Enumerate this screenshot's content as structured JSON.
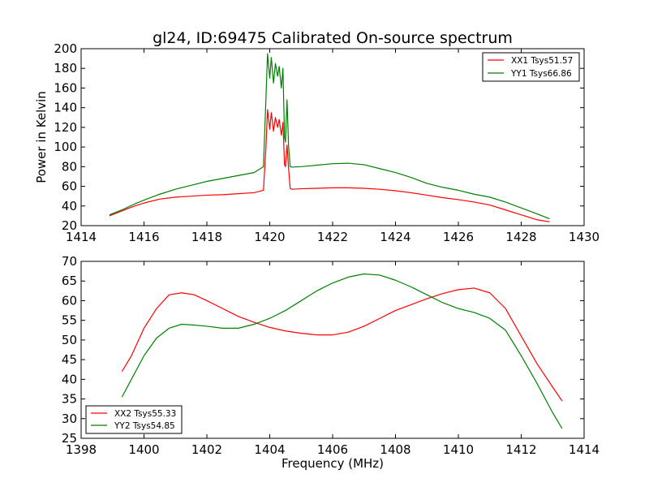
{
  "chart_data": [
    {
      "type": "line",
      "title": "gl24, ID:69475 Calibrated On-source spectrum",
      "xlabel": "",
      "ylabel": "Power in Kelvin",
      "xlim": [
        1414,
        1430
      ],
      "ylim": [
        20,
        200
      ],
      "xticks": [
        "1414",
        "1416",
        "1418",
        "1420",
        "1422",
        "1424",
        "1426",
        "1428",
        "1430"
      ],
      "yticks": [
        "20",
        "40",
        "60",
        "80",
        "100",
        "120",
        "140",
        "160",
        "180",
        "200"
      ],
      "grid": false,
      "legend_position": "top-right",
      "series": [
        {
          "name": "XX1 Tsys51.57",
          "color": "#ff0000",
          "x": [
            1414.9,
            1415.3,
            1415.7,
            1416.0,
            1416.5,
            1417.0,
            1417.5,
            1418.0,
            1418.5,
            1419.0,
            1419.5,
            1419.8,
            1419.88,
            1419.93,
            1420.0,
            1420.05,
            1420.12,
            1420.18,
            1420.25,
            1420.3,
            1420.37,
            1420.42,
            1420.47,
            1420.5,
            1420.55,
            1420.6,
            1420.65,
            1420.7,
            1421.0,
            1421.5,
            1422.0,
            1422.5,
            1423.0,
            1423.5,
            1424.0,
            1424.5,
            1425.0,
            1425.5,
            1426.0,
            1426.5,
            1427.0,
            1427.5,
            1428.0,
            1428.5,
            1428.9
          ],
          "values": [
            30,
            35,
            40,
            43,
            47,
            49,
            50,
            51,
            51.5,
            52.5,
            53.5,
            56,
            100,
            138,
            118,
            135,
            116,
            130,
            120,
            128,
            112,
            125,
            82,
            80,
            102,
            78,
            58,
            57,
            57.5,
            58,
            58.5,
            58.5,
            58,
            57,
            55.5,
            53.5,
            51,
            48.5,
            46.5,
            44,
            41,
            36,
            31,
            26,
            24
          ]
        },
        {
          "name": "YY1 Tsys66.86",
          "color": "#008000",
          "x": [
            1414.9,
            1415.3,
            1415.7,
            1416.0,
            1416.5,
            1417.0,
            1417.5,
            1418.0,
            1418.5,
            1419.0,
            1419.5,
            1419.8,
            1419.88,
            1419.93,
            1420.0,
            1420.05,
            1420.12,
            1420.18,
            1420.25,
            1420.3,
            1420.37,
            1420.42,
            1420.47,
            1420.5,
            1420.55,
            1420.6,
            1420.65,
            1420.7,
            1421.0,
            1421.5,
            1422.0,
            1422.5,
            1423.0,
            1423.5,
            1424.0,
            1424.5,
            1425.0,
            1425.5,
            1426.0,
            1426.5,
            1427.0,
            1427.5,
            1428.0,
            1428.5,
            1428.9
          ],
          "values": [
            31,
            36,
            42,
            46,
            52,
            57,
            61,
            65,
            68,
            71,
            74,
            80,
            150,
            195,
            170,
            191,
            165,
            185,
            172,
            182,
            160,
            180,
            110,
            105,
            148,
            100,
            80,
            79.5,
            80,
            81.5,
            83,
            83.5,
            82,
            78,
            74,
            69,
            63,
            59,
            56,
            52,
            49,
            44,
            38,
            32,
            27
          ]
        }
      ]
    },
    {
      "type": "line",
      "title": "",
      "xlabel": "Frequency (MHz)",
      "ylabel": "",
      "xlim": [
        1398,
        1414
      ],
      "ylim": [
        25,
        70
      ],
      "xticks": [
        "1398",
        "1400",
        "1402",
        "1404",
        "1406",
        "1408",
        "1410",
        "1412",
        "1414"
      ],
      "yticks": [
        "25",
        "30",
        "35",
        "40",
        "45",
        "50",
        "55",
        "60",
        "65",
        "70"
      ],
      "grid": false,
      "legend_position": "bottom-left",
      "series": [
        {
          "name": "XX2 Tsys55.33",
          "color": "#ff0000",
          "x": [
            1399.3,
            1399.6,
            1400.0,
            1400.4,
            1400.8,
            1401.2,
            1401.6,
            1402.0,
            1402.5,
            1403.0,
            1403.5,
            1404.0,
            1404.5,
            1405.0,
            1405.5,
            1406.0,
            1406.5,
            1407.0,
            1407.5,
            1408.0,
            1408.5,
            1409.0,
            1409.5,
            1410.0,
            1410.5,
            1411.0,
            1411.5,
            1412.0,
            1412.5,
            1413.0,
            1413.3
          ],
          "values": [
            42,
            46,
            53,
            58,
            61.5,
            62,
            61.5,
            60,
            58,
            56,
            54.5,
            53.2,
            52.3,
            51.7,
            51.3,
            51.3,
            52,
            53.5,
            55.5,
            57.5,
            59,
            60.5,
            61.8,
            62.8,
            63.2,
            62,
            58,
            51,
            44,
            38,
            34.5
          ]
        },
        {
          "name": "YY2 Tsys54.85",
          "color": "#008000",
          "x": [
            1399.3,
            1399.6,
            1400.0,
            1400.4,
            1400.8,
            1401.2,
            1401.6,
            1402.0,
            1402.5,
            1403.0,
            1403.5,
            1404.0,
            1404.5,
            1405.0,
            1405.5,
            1406.0,
            1406.5,
            1407.0,
            1407.5,
            1408.0,
            1408.5,
            1409.0,
            1409.5,
            1410.0,
            1410.5,
            1411.0,
            1411.5,
            1412.0,
            1412.5,
            1413.0,
            1413.3
          ],
          "values": [
            35.5,
            40,
            46,
            50.5,
            53,
            54,
            53.8,
            53.5,
            53,
            53,
            54,
            55.5,
            57.5,
            60,
            62.5,
            64.5,
            66,
            66.8,
            66.5,
            65.2,
            63.5,
            61.5,
            59.5,
            58,
            57,
            55.5,
            52.5,
            46,
            39,
            31.5,
            27.5
          ]
        }
      ]
    }
  ]
}
